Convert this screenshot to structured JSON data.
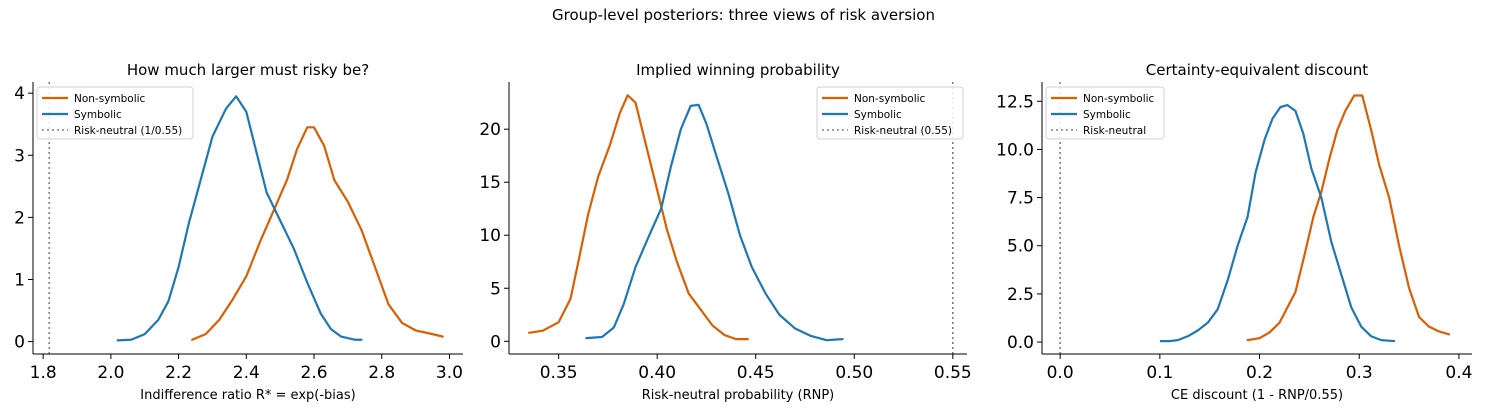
{
  "figure": {
    "suptitle": "Group-level posteriors: three views of risk aversion"
  },
  "chart_data": [
    {
      "type": "line",
      "title": "How much larger must risky be?",
      "xlabel": "Indifference ratio  R* = exp(-bias)",
      "ylabel": "",
      "xlim": [
        1.77,
        3.04
      ],
      "ylim": [
        -0.2,
        4.18
      ],
      "xticks": [
        1.8,
        2.0,
        2.2,
        2.4,
        2.6,
        2.8,
        3.0
      ],
      "xtick_labels": [
        "1.8",
        "2.0",
        "2.2",
        "2.4",
        "2.6",
        "2.8",
        "3.0"
      ],
      "yticks": [
        0,
        1,
        2,
        3,
        4
      ],
      "ytick_labels": [
        "0",
        "1",
        "2",
        "3",
        "4"
      ],
      "legend_position": "top-left",
      "series": [
        {
          "name": "Non-symbolic",
          "color": "#d95f02",
          "points": [
            [
              2.24,
              0.03
            ],
            [
              2.28,
              0.12
            ],
            [
              2.32,
              0.35
            ],
            [
              2.36,
              0.68
            ],
            [
              2.4,
              1.05
            ],
            [
              2.44,
              1.6
            ],
            [
              2.48,
              2.1
            ],
            [
              2.52,
              2.6
            ],
            [
              2.55,
              3.1
            ],
            [
              2.58,
              3.45
            ],
            [
              2.6,
              3.45
            ],
            [
              2.63,
              3.15
            ],
            [
              2.66,
              2.6
            ],
            [
              2.7,
              2.25
            ],
            [
              2.74,
              1.8
            ],
            [
              2.78,
              1.2
            ],
            [
              2.82,
              0.6
            ],
            [
              2.86,
              0.3
            ],
            [
              2.9,
              0.18
            ],
            [
              2.95,
              0.12
            ],
            [
              2.98,
              0.08
            ]
          ]
        },
        {
          "name": "Symbolic",
          "color": "#1f77b4",
          "points": [
            [
              2.02,
              0.02
            ],
            [
              2.06,
              0.03
            ],
            [
              2.1,
              0.12
            ],
            [
              2.14,
              0.35
            ],
            [
              2.17,
              0.65
            ],
            [
              2.2,
              1.2
            ],
            [
              2.23,
              1.9
            ],
            [
              2.27,
              2.7
            ],
            [
              2.3,
              3.3
            ],
            [
              2.34,
              3.75
            ],
            [
              2.37,
              3.95
            ],
            [
              2.4,
              3.7
            ],
            [
              2.43,
              3.05
            ],
            [
              2.46,
              2.4
            ],
            [
              2.5,
              1.95
            ],
            [
              2.54,
              1.5
            ],
            [
              2.58,
              0.95
            ],
            [
              2.62,
              0.45
            ],
            [
              2.65,
              0.2
            ],
            [
              2.68,
              0.08
            ],
            [
              2.72,
              0.03
            ],
            [
              2.74,
              0.03
            ]
          ]
        },
        {
          "name": "Risk-neutral (1/0.55)",
          "color": "#808080",
          "style": "dotted",
          "vline": 1.818
        }
      ]
    },
    {
      "type": "line",
      "title": "Implied winning probability",
      "xlabel": "Risk-neutral probability  (RNP)",
      "ylabel": "",
      "xlim": [
        0.3248,
        0.5572
      ],
      "ylim": [
        -1.2,
        24.45
      ],
      "xticks": [
        0.35,
        0.4,
        0.45,
        0.5,
        0.55
      ],
      "xtick_labels": [
        "0.35",
        "0.40",
        "0.45",
        "0.50",
        "0.55"
      ],
      "yticks": [
        0,
        5,
        10,
        15,
        20
      ],
      "ytick_labels": [
        "0",
        "5",
        "10",
        "15",
        "20"
      ],
      "legend_position": "top-right",
      "series": [
        {
          "name": "Non-symbolic",
          "color": "#d95f02",
          "points": [
            [
              0.335,
              0.8
            ],
            [
              0.342,
              1.0
            ],
            [
              0.35,
              1.8
            ],
            [
              0.356,
              4.0
            ],
            [
              0.36,
              7.5
            ],
            [
              0.365,
              12.0
            ],
            [
              0.37,
              15.5
            ],
            [
              0.376,
              18.5
            ],
            [
              0.381,
              21.5
            ],
            [
              0.385,
              23.2
            ],
            [
              0.389,
              22.5
            ],
            [
              0.393,
              19.5
            ],
            [
              0.397,
              16.5
            ],
            [
              0.401,
              13.5
            ],
            [
              0.405,
              10.5
            ],
            [
              0.41,
              7.5
            ],
            [
              0.416,
              4.5
            ],
            [
              0.422,
              3.0
            ],
            [
              0.428,
              1.5
            ],
            [
              0.434,
              0.6
            ],
            [
              0.44,
              0.2
            ],
            [
              0.446,
              0.2
            ]
          ]
        },
        {
          "name": "Symbolic",
          "color": "#1f77b4",
          "points": [
            [
              0.364,
              0.3
            ],
            [
              0.372,
              0.4
            ],
            [
              0.378,
              1.3
            ],
            [
              0.383,
              3.5
            ],
            [
              0.389,
              7.0
            ],
            [
              0.396,
              10.0
            ],
            [
              0.402,
              12.5
            ],
            [
              0.407,
              16.5
            ],
            [
              0.412,
              20.0
            ],
            [
              0.417,
              22.2
            ],
            [
              0.421,
              22.3
            ],
            [
              0.425,
              20.5
            ],
            [
              0.43,
              17.5
            ],
            [
              0.436,
              14.0
            ],
            [
              0.442,
              10.0
            ],
            [
              0.448,
              7.0
            ],
            [
              0.455,
              4.5
            ],
            [
              0.462,
              2.5
            ],
            [
              0.47,
              1.2
            ],
            [
              0.478,
              0.5
            ],
            [
              0.486,
              0.1
            ],
            [
              0.494,
              0.2
            ]
          ]
        },
        {
          "name": "Risk-neutral (0.55)",
          "color": "#808080",
          "style": "dotted",
          "vline": 0.55
        }
      ]
    },
    {
      "type": "line",
      "title": "Certainty-equivalent discount",
      "xlabel": "CE discount  (1 - RNP/0.55)",
      "ylabel": "",
      "xlim": [
        -0.0182,
        0.4131
      ],
      "ylim": [
        -0.62,
        13.5
      ],
      "xticks": [
        0.0,
        0.1,
        0.2,
        0.3,
        0.4
      ],
      "xtick_labels": [
        "0.0",
        "0.1",
        "0.2",
        "0.3",
        "0.4"
      ],
      "yticks": [
        0,
        2.5,
        5,
        7.5,
        10,
        12.5
      ],
      "ytick_labels": [
        "0.0",
        "2.5",
        "5.0",
        "7.5",
        "10.0",
        "12.5"
      ],
      "legend_position": "top-left",
      "series": [
        {
          "name": "Non-symbolic",
          "color": "#d95f02",
          "points": [
            [
              0.188,
              0.1
            ],
            [
              0.2,
              0.2
            ],
            [
              0.21,
              0.5
            ],
            [
              0.22,
              1.0
            ],
            [
              0.228,
              1.8
            ],
            [
              0.236,
              2.6
            ],
            [
              0.245,
              4.5
            ],
            [
              0.254,
              6.5
            ],
            [
              0.262,
              7.8
            ],
            [
              0.27,
              9.5
            ],
            [
              0.278,
              11.0
            ],
            [
              0.286,
              12.0
            ],
            [
              0.295,
              12.8
            ],
            [
              0.303,
              12.8
            ],
            [
              0.312,
              11.0
            ],
            [
              0.32,
              9.2
            ],
            [
              0.33,
              7.5
            ],
            [
              0.34,
              5.0
            ],
            [
              0.35,
              2.8
            ],
            [
              0.36,
              1.3
            ],
            [
              0.37,
              0.8
            ],
            [
              0.38,
              0.55
            ],
            [
              0.39,
              0.4
            ]
          ]
        },
        {
          "name": "Symbolic",
          "color": "#1f77b4",
          "points": [
            [
              0.101,
              0.05
            ],
            [
              0.11,
              0.05
            ],
            [
              0.118,
              0.1
            ],
            [
              0.128,
              0.3
            ],
            [
              0.138,
              0.6
            ],
            [
              0.148,
              1.0
            ],
            [
              0.158,
              1.7
            ],
            [
              0.168,
              3.2
            ],
            [
              0.178,
              5.0
            ],
            [
              0.188,
              6.5
            ],
            [
              0.196,
              8.8
            ],
            [
              0.205,
              10.5
            ],
            [
              0.213,
              11.6
            ],
            [
              0.221,
              12.2
            ],
            [
              0.228,
              12.3
            ],
            [
              0.236,
              12.0
            ],
            [
              0.244,
              10.8
            ],
            [
              0.252,
              9.0
            ],
            [
              0.262,
              7.5
            ],
            [
              0.272,
              5.2
            ],
            [
              0.282,
              3.5
            ],
            [
              0.292,
              1.8
            ],
            [
              0.302,
              0.8
            ],
            [
              0.312,
              0.3
            ],
            [
              0.322,
              0.1
            ],
            [
              0.335,
              0.05
            ]
          ]
        },
        {
          "name": "Risk-neutral",
          "color": "#808080",
          "style": "dotted",
          "vline": 0.0
        }
      ]
    }
  ]
}
